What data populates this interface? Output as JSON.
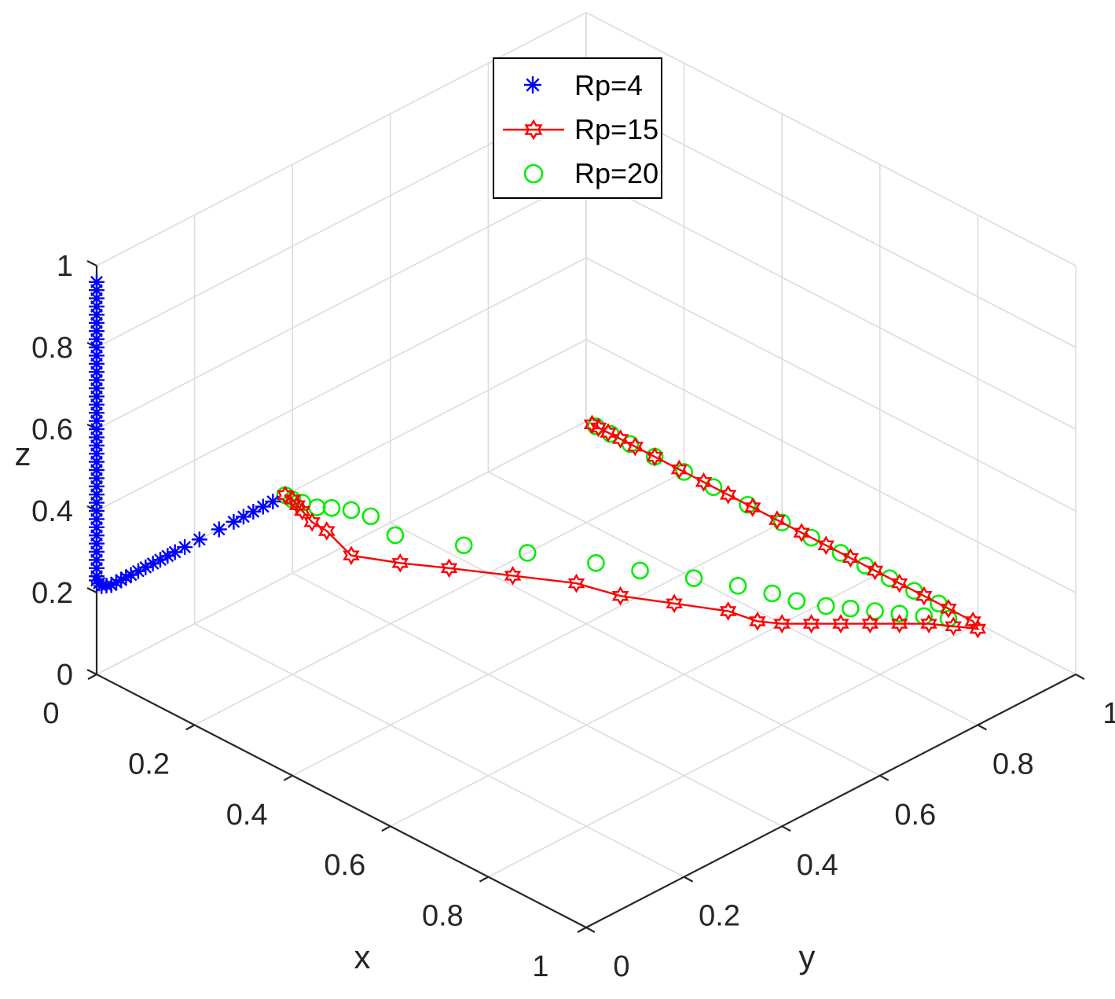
{
  "chart_data": {
    "type": "scatter",
    "projection": "3d",
    "xlabel": "x",
    "ylabel": "y",
    "zlabel": "z",
    "xlim": [
      0,
      1
    ],
    "ylim": [
      0,
      1
    ],
    "zlim": [
      0,
      1
    ],
    "ticks": {
      "x": [
        "0",
        "0.2",
        "0.4",
        "0.6",
        "0.8",
        "1"
      ],
      "y": [
        "0",
        "0.2",
        "0.4",
        "0.6",
        "0.8",
        "1"
      ],
      "z": [
        "0",
        "0.2",
        "0.4",
        "0.6",
        "0.8",
        "1"
      ]
    },
    "grid": true,
    "legend_position": "top-center",
    "series": [
      {
        "name": "Rp=4",
        "marker": "asterisk",
        "line": false,
        "color": "#0000ff",
        "points": [
          [
            0.0,
            0.0,
            0.96
          ],
          [
            0.0,
            0.0,
            0.94
          ],
          [
            0.0,
            0.0,
            0.92
          ],
          [
            0.0,
            0.0,
            0.9
          ],
          [
            0.0,
            0.0,
            0.88
          ],
          [
            0.0,
            0.0,
            0.86
          ],
          [
            0.0,
            0.0,
            0.84
          ],
          [
            0.0,
            0.0,
            0.82
          ],
          [
            0.0,
            0.0,
            0.8
          ],
          [
            0.0,
            0.0,
            0.78
          ],
          [
            0.0,
            0.0,
            0.76
          ],
          [
            0.0,
            0.0,
            0.74
          ],
          [
            0.0,
            0.0,
            0.72
          ],
          [
            0.0,
            0.0,
            0.7
          ],
          [
            0.0,
            0.0,
            0.68
          ],
          [
            0.0,
            0.0,
            0.66
          ],
          [
            0.0,
            0.0,
            0.64
          ],
          [
            0.0,
            0.0,
            0.62
          ],
          [
            0.0,
            0.0,
            0.6
          ],
          [
            0.0,
            0.0,
            0.58
          ],
          [
            0.0,
            0.0,
            0.56
          ],
          [
            0.0,
            0.0,
            0.54
          ],
          [
            0.0,
            0.0,
            0.52
          ],
          [
            0.0,
            0.0,
            0.5
          ],
          [
            0.0,
            0.0,
            0.48
          ],
          [
            0.0,
            0.0,
            0.46
          ],
          [
            0.0,
            0.0,
            0.44
          ],
          [
            0.0,
            0.0,
            0.42
          ],
          [
            0.0,
            0.0,
            0.4
          ],
          [
            0.0,
            0.0,
            0.38
          ],
          [
            0.0,
            0.0,
            0.36
          ],
          [
            0.0,
            0.0,
            0.34
          ],
          [
            0.0,
            0.0,
            0.32
          ],
          [
            0.0,
            0.0,
            0.3
          ],
          [
            0.0,
            0.0,
            0.28
          ],
          [
            0.0,
            0.0,
            0.26
          ],
          [
            0.0,
            0.0,
            0.24
          ],
          [
            0.0,
            0.0,
            0.23
          ],
          [
            0.0,
            0.005,
            0.22
          ],
          [
            0.0,
            0.01,
            0.21
          ],
          [
            0.0,
            0.02,
            0.205
          ],
          [
            0.0,
            0.03,
            0.2
          ],
          [
            0.0,
            0.04,
            0.2
          ],
          [
            0.0,
            0.05,
            0.2
          ],
          [
            0.0,
            0.06,
            0.2
          ],
          [
            0.0,
            0.07,
            0.2
          ],
          [
            0.0,
            0.085,
            0.2
          ],
          [
            0.0,
            0.1,
            0.2
          ],
          [
            0.0,
            0.115,
            0.2
          ],
          [
            0.0,
            0.13,
            0.2
          ],
          [
            0.0,
            0.145,
            0.2
          ],
          [
            0.0,
            0.16,
            0.2
          ],
          [
            0.0,
            0.18,
            0.2
          ],
          [
            0.0,
            0.21,
            0.2
          ],
          [
            0.0,
            0.25,
            0.2
          ],
          [
            0.0,
            0.28,
            0.2
          ],
          [
            0.0,
            0.3,
            0.2
          ],
          [
            0.0,
            0.32,
            0.2
          ],
          [
            0.0,
            0.34,
            0.2
          ],
          [
            0.0,
            0.36,
            0.2
          ]
        ]
      },
      {
        "name": "Rp=15",
        "marker": "hexagram",
        "line": true,
        "color": "#ff0000",
        "points": [
          [
            0.0,
            0.385,
            0.2
          ],
          [
            0.0,
            0.4,
            0.18
          ],
          [
            0.0,
            0.41,
            0.16
          ],
          [
            0.0,
            0.42,
            0.14
          ],
          [
            0.0,
            0.44,
            0.1
          ],
          [
            0.0,
            0.47,
            0.06
          ],
          [
            0.025,
            0.495,
            0.0
          ],
          [
            0.09,
            0.53,
            0.0
          ],
          [
            0.15,
            0.57,
            0.0
          ],
          [
            0.23,
            0.62,
            0.0
          ],
          [
            0.31,
            0.67,
            0.0
          ],
          [
            0.38,
            0.69,
            0.0
          ],
          [
            0.45,
            0.73,
            0.0
          ],
          [
            0.52,
            0.77,
            0.0
          ],
          [
            0.57,
            0.78,
            0.0
          ],
          [
            0.6,
            0.8,
            0.0
          ],
          [
            0.63,
            0.83,
            0.0
          ],
          [
            0.66,
            0.86,
            0.0
          ],
          [
            0.69,
            0.89,
            0.0
          ],
          [
            0.72,
            0.92,
            0.0
          ],
          [
            0.75,
            0.95,
            0.0
          ],
          [
            0.78,
            0.97,
            0.0
          ],
          [
            0.81,
            0.99,
            0.0
          ],
          [
            0.79,
            1.0,
            0.0
          ],
          [
            0.74,
            1.0,
            0.0
          ],
          [
            0.69,
            1.0,
            0.0
          ],
          [
            0.64,
            1.0,
            0.0
          ],
          [
            0.59,
            1.0,
            0.0
          ],
          [
            0.54,
            1.0,
            0.0
          ],
          [
            0.49,
            1.0,
            0.0
          ],
          [
            0.44,
            1.0,
            0.0
          ],
          [
            0.39,
            1.0,
            0.0
          ],
          [
            0.34,
            1.0,
            0.0
          ],
          [
            0.29,
            1.0,
            0.0
          ],
          [
            0.24,
            1.0,
            0.0
          ],
          [
            0.19,
            1.0,
            0.0
          ],
          [
            0.14,
            1.0,
            0.0
          ],
          [
            0.1,
            1.0,
            0.0
          ],
          [
            0.07,
            1.0,
            0.0
          ],
          [
            0.045,
            1.0,
            0.0
          ],
          [
            0.025,
            1.0,
            0.0
          ],
          [
            0.012,
            1.0,
            0.0
          ]
        ]
      },
      {
        "name": "Rp=20",
        "marker": "circle",
        "line": false,
        "color": "#00ee00",
        "points": [
          [
            0.0,
            0.385,
            0.2
          ],
          [
            0.0,
            0.4,
            0.18
          ],
          [
            0.0,
            0.42,
            0.16
          ],
          [
            0.0,
            0.45,
            0.13
          ],
          [
            0.0,
            0.48,
            0.11
          ],
          [
            0.0,
            0.52,
            0.08
          ],
          [
            0.0,
            0.56,
            0.04
          ],
          [
            0.03,
            0.58,
            0.0
          ],
          [
            0.12,
            0.63,
            0.0
          ],
          [
            0.2,
            0.68,
            0.0
          ],
          [
            0.29,
            0.73,
            0.0
          ],
          [
            0.35,
            0.76,
            0.0
          ],
          [
            0.42,
            0.8,
            0.0
          ],
          [
            0.48,
            0.83,
            0.0
          ],
          [
            0.53,
            0.85,
            0.0
          ],
          [
            0.57,
            0.86,
            0.0
          ],
          [
            0.61,
            0.88,
            0.0
          ],
          [
            0.64,
            0.9,
            0.0
          ],
          [
            0.67,
            0.92,
            0.0
          ],
          [
            0.7,
            0.94,
            0.0
          ],
          [
            0.73,
            0.96,
            0.0
          ],
          [
            0.76,
            0.98,
            0.0
          ],
          [
            0.72,
            1.0,
            0.0
          ],
          [
            0.67,
            1.0,
            0.0
          ],
          [
            0.62,
            1.0,
            0.0
          ],
          [
            0.57,
            1.0,
            0.0
          ],
          [
            0.52,
            1.0,
            0.0
          ],
          [
            0.46,
            1.0,
            0.0
          ],
          [
            0.4,
            1.0,
            0.0
          ],
          [
            0.33,
            1.0,
            0.0
          ],
          [
            0.26,
            1.0,
            0.0
          ],
          [
            0.2,
            1.0,
            0.0
          ],
          [
            0.14,
            1.0,
            0.0
          ],
          [
            0.09,
            1.0,
            0.0
          ],
          [
            0.05,
            1.0,
            0.0
          ],
          [
            0.02,
            1.0,
            0.0
          ]
        ]
      }
    ]
  }
}
